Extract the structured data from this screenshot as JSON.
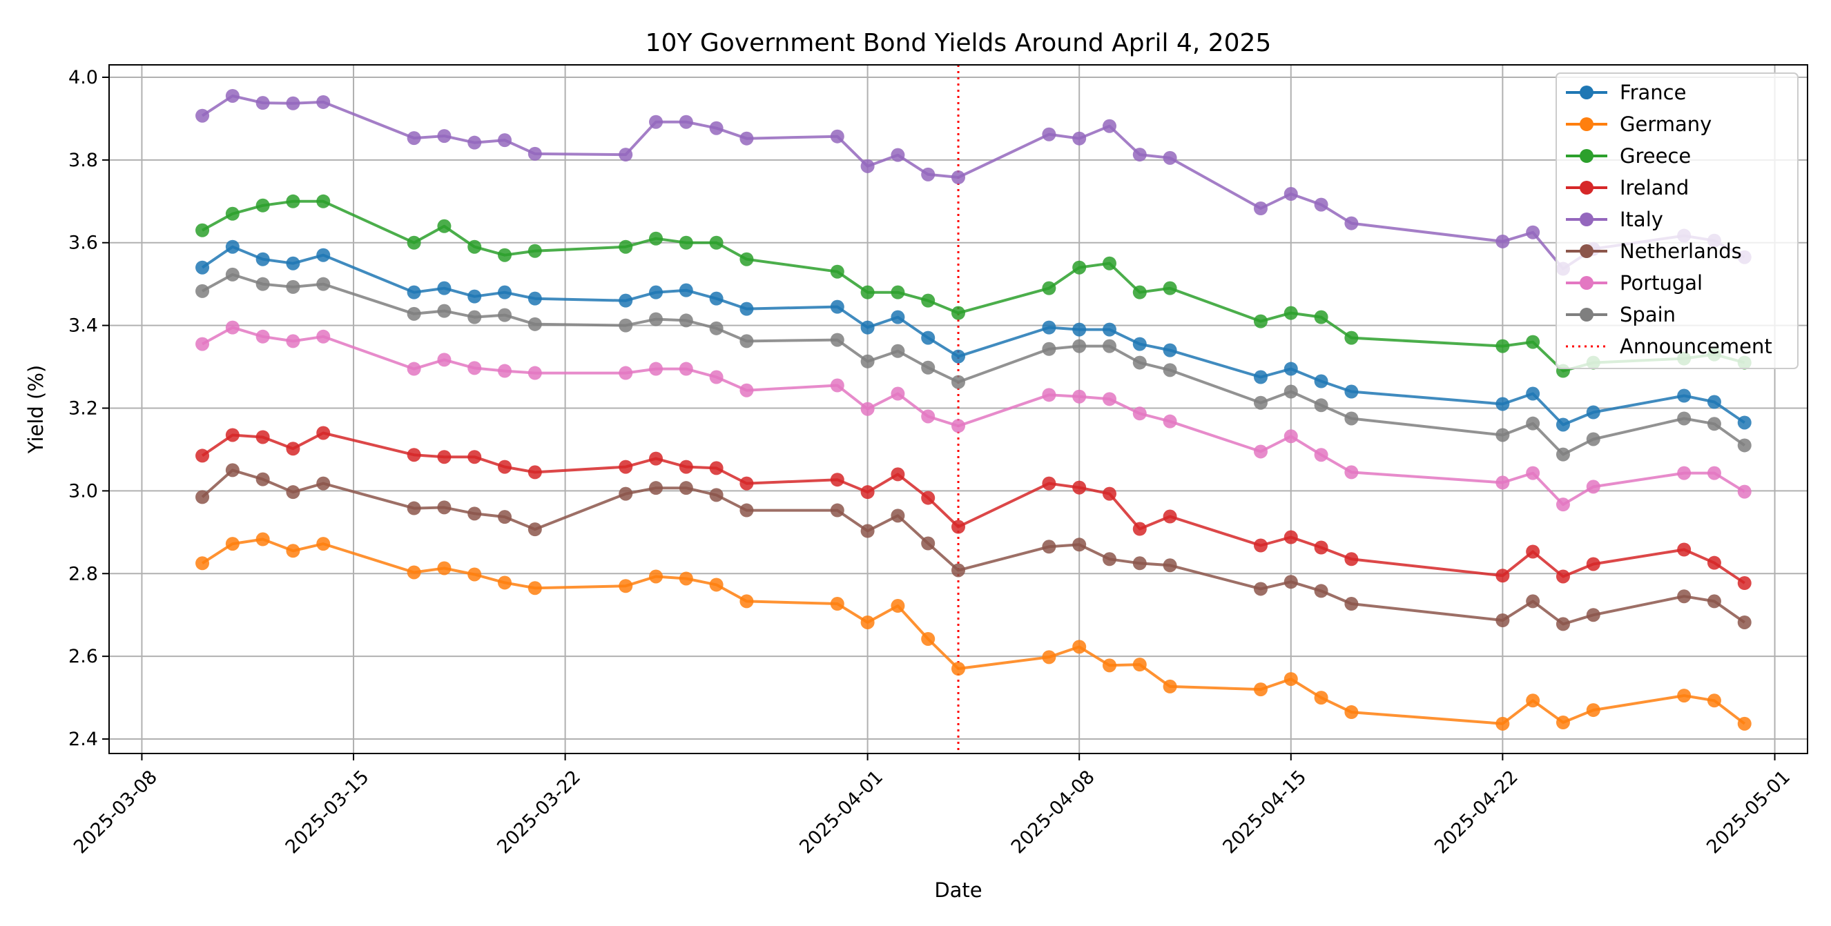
{
  "chart_data": {
    "type": "line",
    "title": "10Y Government Bond Yields Around April 4, 2025",
    "xlabel": "Date",
    "ylabel": "Yield (%)",
    "ylim": [
      2.365,
      4.03
    ],
    "xlim": [
      "2025-03-06T22:00",
      "2025-05-02T02:00"
    ],
    "yticks": [
      2.4,
      2.6,
      2.8,
      3.0,
      3.2,
      3.4,
      3.6,
      3.8,
      4.0
    ],
    "ytick_labels": [
      "2.4",
      "2.6",
      "2.8",
      "3.0",
      "3.2",
      "3.4",
      "3.6",
      "3.8",
      "4.0"
    ],
    "xticks": [
      "2025-03-08",
      "2025-03-15",
      "2025-03-22",
      "2025-04-01",
      "2025-04-08",
      "2025-04-15",
      "2025-04-22",
      "2025-05-01"
    ],
    "xtick_labels": [
      "2025-03-08",
      "2025-03-15",
      "2025-03-22",
      "2025-04-01",
      "2025-04-08",
      "2025-04-15",
      "2025-04-22",
      "2025-05-01"
    ],
    "grid": true,
    "legend_position": "top-right",
    "x": [
      "2025-03-10",
      "2025-03-11",
      "2025-03-12",
      "2025-03-13",
      "2025-03-14",
      "2025-03-17",
      "2025-03-18",
      "2025-03-19",
      "2025-03-20",
      "2025-03-21",
      "2025-03-24",
      "2025-03-25",
      "2025-03-26",
      "2025-03-27",
      "2025-03-28",
      "2025-03-31",
      "2025-04-01",
      "2025-04-02",
      "2025-04-03",
      "2025-04-04",
      "2025-04-07",
      "2025-04-08",
      "2025-04-09",
      "2025-04-10",
      "2025-04-11",
      "2025-04-14",
      "2025-04-15",
      "2025-04-16",
      "2025-04-17",
      "2025-04-22",
      "2025-04-23",
      "2025-04-24",
      "2025-04-25",
      "2025-04-28",
      "2025-04-29",
      "2025-04-30"
    ],
    "series": [
      {
        "name": "France",
        "color": "#1f77b4",
        "values": [
          3.54,
          3.59,
          3.56,
          3.55,
          3.57,
          3.48,
          3.49,
          3.47,
          3.48,
          3.465,
          3.46,
          3.48,
          3.485,
          3.465,
          3.44,
          3.445,
          3.395,
          3.42,
          3.37,
          3.325,
          3.395,
          3.39,
          3.39,
          3.355,
          3.34,
          3.275,
          3.295,
          3.265,
          3.24,
          3.21,
          3.235,
          3.16,
          3.19,
          3.23,
          3.215,
          3.165
        ]
      },
      {
        "name": "Germany",
        "color": "#ff7f0e",
        "values": [
          2.825,
          2.872,
          2.883,
          2.855,
          2.872,
          2.803,
          2.813,
          2.798,
          2.778,
          2.765,
          2.77,
          2.793,
          2.788,
          2.773,
          2.733,
          2.727,
          2.682,
          2.722,
          2.642,
          2.57,
          2.598,
          2.623,
          2.578,
          2.58,
          2.527,
          2.52,
          2.545,
          2.5,
          2.465,
          2.437,
          2.493,
          2.44,
          2.47,
          2.505,
          2.493,
          2.437
        ]
      },
      {
        "name": "Greece",
        "color": "#2ca02c",
        "values": [
          3.63,
          3.67,
          3.69,
          3.7,
          3.7,
          3.6,
          3.64,
          3.59,
          3.57,
          3.58,
          3.59,
          3.61,
          3.6,
          3.6,
          3.56,
          3.53,
          3.48,
          3.48,
          3.46,
          3.43,
          3.49,
          3.54,
          3.55,
          3.48,
          3.49,
          3.41,
          3.43,
          3.42,
          3.37,
          3.35,
          3.36,
          3.29,
          3.31,
          3.32,
          3.33,
          3.31
        ]
      },
      {
        "name": "Ireland",
        "color": "#d62728",
        "values": [
          3.085,
          3.135,
          3.13,
          3.102,
          3.14,
          3.087,
          3.082,
          3.082,
          3.058,
          3.045,
          3.058,
          3.078,
          3.058,
          3.055,
          3.018,
          3.027,
          2.997,
          3.04,
          2.983,
          2.913,
          3.018,
          3.008,
          2.993,
          2.908,
          2.938,
          2.868,
          2.888,
          2.863,
          2.835,
          2.795,
          2.853,
          2.793,
          2.823,
          2.858,
          2.826,
          2.777
        ]
      },
      {
        "name": "Italy",
        "color": "#9467bd",
        "values": [
          3.907,
          3.955,
          3.938,
          3.937,
          3.94,
          3.853,
          3.858,
          3.842,
          3.848,
          3.815,
          3.813,
          3.892,
          3.892,
          3.877,
          3.852,
          3.857,
          3.785,
          3.812,
          3.765,
          3.758,
          3.862,
          3.852,
          3.882,
          3.813,
          3.805,
          3.683,
          3.718,
          3.692,
          3.647,
          3.603,
          3.625,
          3.537,
          3.585,
          3.617,
          3.605,
          3.565
        ]
      },
      {
        "name": "Netherlands",
        "color": "#8c564b",
        "values": [
          2.985,
          3.05,
          3.028,
          2.997,
          3.018,
          2.958,
          2.96,
          2.945,
          2.937,
          2.907,
          2.993,
          3.007,
          3.007,
          2.99,
          2.953,
          2.953,
          2.903,
          2.94,
          2.873,
          2.808,
          2.865,
          2.87,
          2.835,
          2.825,
          2.82,
          2.763,
          2.78,
          2.758,
          2.727,
          2.687,
          2.733,
          2.678,
          2.7,
          2.745,
          2.733,
          2.682
        ]
      },
      {
        "name": "Portugal",
        "color": "#e377c2",
        "values": [
          3.355,
          3.395,
          3.373,
          3.362,
          3.373,
          3.295,
          3.317,
          3.297,
          3.29,
          3.285,
          3.285,
          3.295,
          3.295,
          3.275,
          3.243,
          3.255,
          3.198,
          3.235,
          3.18,
          3.157,
          3.232,
          3.228,
          3.222,
          3.187,
          3.168,
          3.095,
          3.132,
          3.087,
          3.045,
          3.02,
          3.043,
          2.967,
          3.01,
          3.043,
          3.043,
          2.998
        ]
      },
      {
        "name": "Spain",
        "color": "#7f7f7f",
        "values": [
          3.483,
          3.523,
          3.5,
          3.493,
          3.5,
          3.428,
          3.435,
          3.42,
          3.425,
          3.403,
          3.4,
          3.415,
          3.412,
          3.393,
          3.362,
          3.365,
          3.313,
          3.338,
          3.298,
          3.263,
          3.343,
          3.35,
          3.35,
          3.31,
          3.292,
          3.213,
          3.24,
          3.207,
          3.175,
          3.135,
          3.163,
          3.088,
          3.125,
          3.175,
          3.162,
          3.11
        ]
      }
    ],
    "vline": {
      "name": "Announcement",
      "x": "2025-04-04",
      "color": "#ff0000",
      "style": "dotted"
    }
  }
}
